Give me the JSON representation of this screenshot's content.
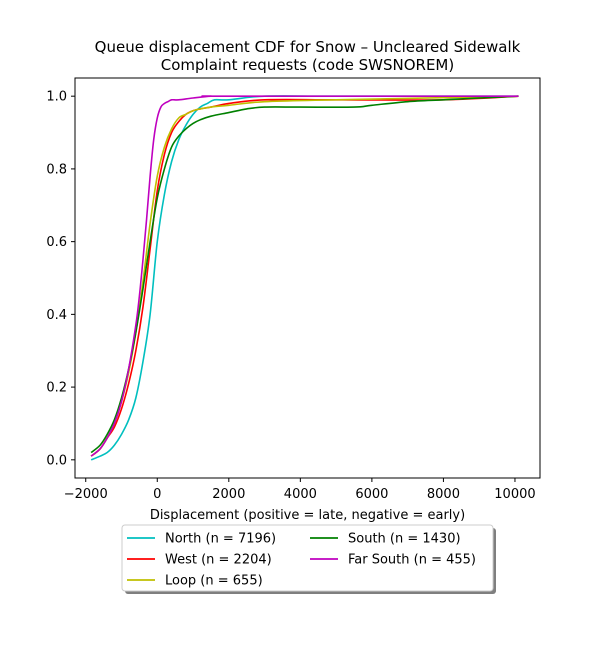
{
  "chart_data": {
    "type": "line",
    "title": "Queue displacement CDF for Snow – Uncleared Sidewalk\nComplaint  requests (code SWSNOREM)",
    "xlabel": "Displacement (positive = late, negative = early)",
    "ylabel": "",
    "xlim": [
      -2300,
      10700
    ],
    "ylim": [
      -0.05,
      1.05
    ],
    "xticks": [
      -2000,
      0,
      2000,
      4000,
      6000,
      8000,
      10000
    ],
    "yticks": [
      0.0,
      0.2,
      0.4,
      0.6,
      0.8,
      1.0
    ],
    "xtick_labels": [
      "−2000",
      "0",
      "2000",
      "4000",
      "6000",
      "8000",
      "10000"
    ],
    "ytick_labels": [
      "0.0",
      "0.2",
      "0.4",
      "0.6",
      "0.8",
      "1.0"
    ],
    "legend": {
      "placement": "bottom-center",
      "columns": 2
    },
    "series": [
      {
        "name": "North (n = 7196)",
        "color": "#00bfbf",
        "x": [
          -1850,
          -1600,
          -1400,
          -1200,
          -1000,
          -800,
          -600,
          -400,
          -200,
          0,
          200,
          400,
          600,
          800,
          1000,
          1200,
          1400,
          1600,
          2000,
          3000,
          5000,
          10100
        ],
        "y": [
          0.0,
          0.01,
          0.02,
          0.04,
          0.07,
          0.11,
          0.17,
          0.27,
          0.4,
          0.6,
          0.73,
          0.82,
          0.88,
          0.92,
          0.95,
          0.97,
          0.98,
          0.99,
          0.99,
          1.0,
          1.0,
          1.0
        ]
      },
      {
        "name": "West (n = 2204)",
        "color": "#ff0000",
        "x": [
          -1850,
          -1600,
          -1400,
          -1200,
          -1000,
          -800,
          -600,
          -400,
          -200,
          0,
          200,
          400,
          600,
          800,
          1000,
          1200,
          1500,
          2000,
          3000,
          5000,
          8000,
          10100
        ],
        "y": [
          0.01,
          0.03,
          0.06,
          0.09,
          0.14,
          0.21,
          0.3,
          0.42,
          0.58,
          0.74,
          0.84,
          0.9,
          0.93,
          0.95,
          0.96,
          0.965,
          0.97,
          0.98,
          0.99,
          0.99,
          0.99,
          1.0
        ]
      },
      {
        "name": "Loop (n = 655)",
        "color": "#bfbf00",
        "x": [
          -1850,
          -1600,
          -1400,
          -1200,
          -1000,
          -800,
          -600,
          -400,
          -200,
          0,
          200,
          400,
          600,
          800,
          1000,
          1200,
          1500,
          2000,
          3000,
          5000,
          10100
        ],
        "y": [
          0.01,
          0.03,
          0.06,
          0.1,
          0.16,
          0.24,
          0.35,
          0.49,
          0.65,
          0.78,
          0.86,
          0.91,
          0.94,
          0.95,
          0.96,
          0.965,
          0.97,
          0.975,
          0.985,
          0.99,
          1.0
        ]
      },
      {
        "name": "South (n = 1430)",
        "color": "#008000",
        "x": [
          -1850,
          -1600,
          -1400,
          -1200,
          -1000,
          -800,
          -600,
          -400,
          -200,
          0,
          200,
          400,
          600,
          800,
          1000,
          1200,
          1500,
          2000,
          2500,
          3000,
          4000,
          5500,
          6000,
          7000,
          8000,
          9000,
          10100
        ],
        "y": [
          0.02,
          0.04,
          0.07,
          0.11,
          0.17,
          0.25,
          0.35,
          0.47,
          0.6,
          0.72,
          0.8,
          0.86,
          0.89,
          0.91,
          0.925,
          0.935,
          0.945,
          0.955,
          0.965,
          0.97,
          0.97,
          0.97,
          0.975,
          0.985,
          0.99,
          0.995,
          1.0
        ]
      },
      {
        "name": "Far South (n = 455)",
        "color": "#bf00bf",
        "x": [
          -1850,
          -1600,
          -1400,
          -1200,
          -1000,
          -800,
          -600,
          -500,
          -400,
          -300,
          -200,
          -100,
          0,
          100,
          200,
          300,
          400,
          600,
          1000,
          1500,
          2000,
          10100
        ],
        "y": [
          0.01,
          0.03,
          0.06,
          0.1,
          0.16,
          0.25,
          0.37,
          0.45,
          0.55,
          0.66,
          0.78,
          0.88,
          0.94,
          0.97,
          0.98,
          0.985,
          0.99,
          0.99,
          0.995,
          1.0,
          1.0,
          1.0
        ]
      }
    ]
  }
}
